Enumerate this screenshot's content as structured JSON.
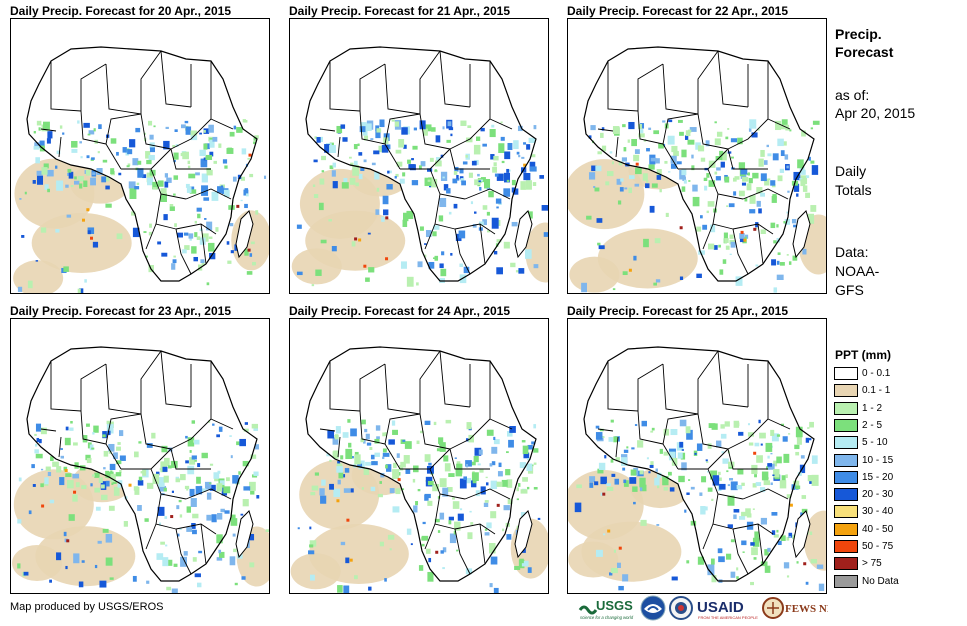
{
  "panels": [
    {
      "title": "Daily Precip. Forecast for 20 Apr., 2015"
    },
    {
      "title": "Daily Precip. Forecast for 21 Apr., 2015"
    },
    {
      "title": "Daily Precip. Forecast for 22 Apr., 2015"
    },
    {
      "title": "Daily Precip. Forecast for 23 Apr., 2015"
    },
    {
      "title": "Daily Precip. Forecast for 24 Apr., 2015"
    },
    {
      "title": "Daily Precip. Forecast for 25 Apr., 2015"
    }
  ],
  "sidebar": {
    "title_line1": "Precip.",
    "title_line2": "Forecast",
    "asof_line1": "as of:",
    "asof_line2": "Apr 20, 2015",
    "totals_line1": "Daily",
    "totals_line2": "Totals",
    "data_line1": "Data:",
    "data_line2": "NOAA-",
    "data_line3": "GFS"
  },
  "legend": {
    "title": "PPT (mm)",
    "items": [
      {
        "label": "0 - 0.1",
        "color": "#ffffff"
      },
      {
        "label": "0.1 - 1",
        "color": "#e8d5b3"
      },
      {
        "label": "1 - 2",
        "color": "#b9f0b0"
      },
      {
        "label": "2 - 5",
        "color": "#7ce07c"
      },
      {
        "label": "5 - 10",
        "color": "#b5ecf3"
      },
      {
        "label": "10 - 15",
        "color": "#7fb6ec"
      },
      {
        "label": "15 - 20",
        "color": "#3f8ce6"
      },
      {
        "label": "20 - 30",
        "color": "#1658d8"
      },
      {
        "label": "30 - 40",
        "color": "#f8e07a"
      },
      {
        "label": "40 - 50",
        "color": "#f4a20e"
      },
      {
        "label": "50 - 75",
        "color": "#f0460c"
      },
      {
        "label": "> 75",
        "color": "#a0201c"
      },
      {
        "label": "No Data",
        "color": "#9a9a9a"
      }
    ]
  },
  "footer": {
    "credit": "Map produced by USGS/EROS"
  },
  "logos": {
    "usgs": "USGS",
    "usgs_tagline": "science for a changing world",
    "usaid": "USAID",
    "usaid_tagline": "FROM THE AMERICAN PEOPLE",
    "fews": "FEWS NET"
  }
}
